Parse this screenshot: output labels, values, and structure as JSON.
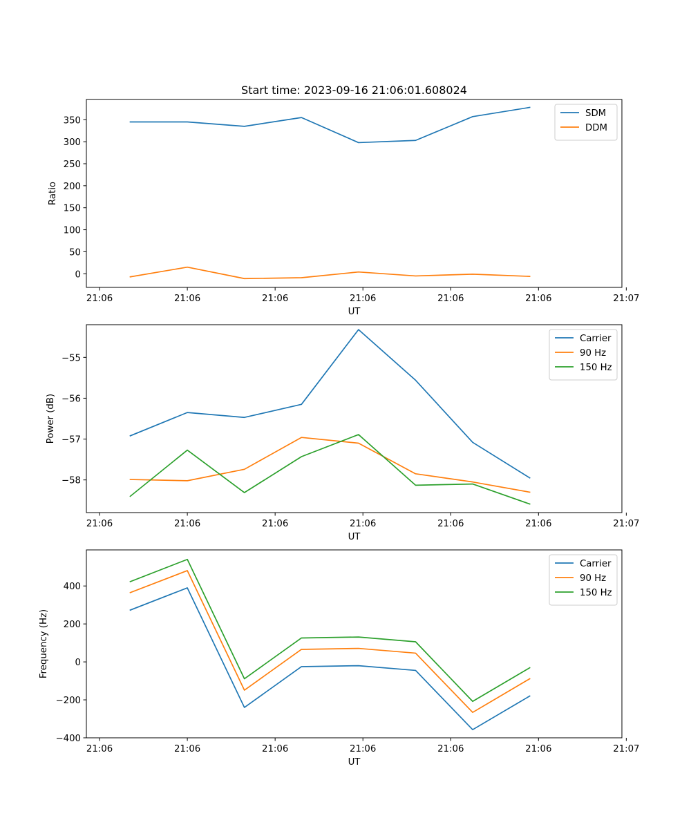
{
  "figure_title": "Start time: 2023-09-16 21:06:01.608024",
  "colors": {
    "blue": "#1f77b4",
    "orange": "#ff7f0e",
    "green": "#2ca02c"
  },
  "chart_data": [
    {
      "type": "line",
      "title": "Start time: 2023-09-16 21:06:01.608024",
      "xlabel": "UT",
      "ylabel": "Ratio",
      "xlim": [
        0,
        6.1
      ],
      "ylim": [
        -31,
        396
      ],
      "x": [
        0.5,
        1.15,
        1.8,
        2.45,
        3.1,
        3.75,
        4.4,
        5.05
      ],
      "xticks": [
        0.15,
        1.15,
        2.15,
        3.15,
        4.15,
        5.15,
        6.15
      ],
      "xtick_labels": [
        "21:06",
        "21:06",
        "21:06",
        "21:06",
        "21:06",
        "21:06",
        "21:07"
      ],
      "yticks": [
        0,
        50,
        100,
        150,
        200,
        250,
        300,
        350
      ],
      "legend_position": "upper right",
      "series": [
        {
          "name": "SDM",
          "color": "#1f77b4",
          "values": [
            345,
            345,
            335,
            355,
            298,
            303,
            357,
            378
          ]
        },
        {
          "name": "DDM",
          "color": "#ff7f0e",
          "values": [
            -7,
            15,
            -11,
            -9,
            4,
            -5,
            -1,
            -6
          ]
        }
      ]
    },
    {
      "type": "line",
      "title": "",
      "xlabel": "UT",
      "ylabel": "Power (dB)",
      "xlim": [
        0,
        6.1
      ],
      "ylim": [
        -58.8,
        -54.2
      ],
      "x": [
        0.5,
        1.15,
        1.8,
        2.45,
        3.1,
        3.75,
        4.4,
        5.05
      ],
      "xticks": [
        0.15,
        1.15,
        2.15,
        3.15,
        4.15,
        5.15,
        6.15
      ],
      "xtick_labels": [
        "21:06",
        "21:06",
        "21:06",
        "21:06",
        "21:06",
        "21:06",
        "21:07"
      ],
      "yticks": [
        -58,
        -57,
        -56,
        -55
      ],
      "ytick_labels": [
        "−58",
        "−57",
        "−56",
        "−55"
      ],
      "legend_position": "upper right",
      "series": [
        {
          "name": "Carrier",
          "color": "#1f77b4",
          "values": [
            -56.92,
            -56.35,
            -56.47,
            -56.15,
            -54.32,
            -55.56,
            -57.08,
            -57.95
          ]
        },
        {
          "name": "90 Hz",
          "color": "#ff7f0e",
          "values": [
            -57.99,
            -58.02,
            -57.74,
            -56.96,
            -57.1,
            -57.85,
            -58.05,
            -58.3
          ]
        },
        {
          "name": "150 Hz",
          "color": "#2ca02c",
          "values": [
            -58.4,
            -57.27,
            -58.31,
            -57.43,
            -56.89,
            -58.13,
            -58.1,
            -58.59
          ]
        }
      ]
    },
    {
      "type": "line",
      "title": "",
      "xlabel": "UT",
      "ylabel": "Frequency (Hz)",
      "xlim": [
        0,
        6.1
      ],
      "ylim": [
        -400,
        590
      ],
      "x": [
        0.5,
        1.15,
        1.8,
        2.45,
        3.1,
        3.75,
        4.4,
        5.05
      ],
      "xticks": [
        0.15,
        1.15,
        2.15,
        3.15,
        4.15,
        5.15,
        6.15
      ],
      "xtick_labels": [
        "21:06",
        "21:06",
        "21:06",
        "21:06",
        "21:06",
        "21:06",
        "21:07"
      ],
      "yticks": [
        -400,
        -200,
        0,
        200,
        400
      ],
      "ytick_labels": [
        "−400",
        "−200",
        "0",
        "200",
        "400"
      ],
      "legend_position": "upper right",
      "series": [
        {
          "name": "Carrier",
          "color": "#1f77b4",
          "values": [
            273,
            390,
            -240,
            -25,
            -20,
            -45,
            -357,
            -180
          ]
        },
        {
          "name": "90 Hz",
          "color": "#ff7f0e",
          "values": [
            365,
            481,
            -149,
            66,
            71,
            46,
            -266,
            -89
          ]
        },
        {
          "name": "150 Hz",
          "color": "#2ca02c",
          "values": [
            423,
            540,
            -89,
            126,
            131,
            106,
            -208,
            -31
          ]
        }
      ]
    }
  ]
}
